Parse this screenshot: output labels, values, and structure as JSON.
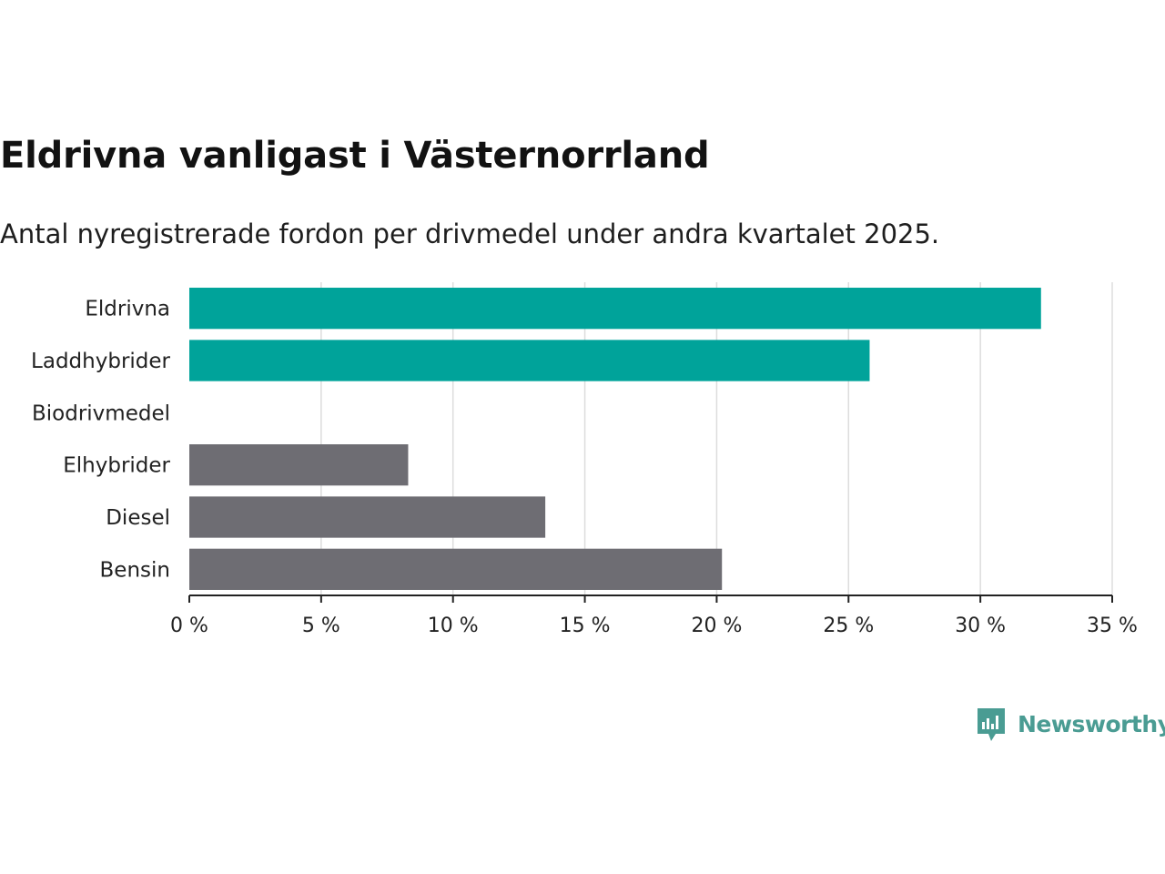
{
  "title": "Eldrivna vanligast i Västernorrland",
  "subtitle": "Antal nyregistrerade fordon per drivmedel under andra kvartalet 2025.",
  "brand": {
    "name": "Newsworthy",
    "icon": "newsworthy-logo-icon"
  },
  "colors": {
    "highlight": "#00a39a",
    "default": "#6e6d73",
    "grid": "#dddddd",
    "axis": "#222222",
    "brand": "#4a9c93"
  },
  "chart_data": {
    "type": "bar",
    "orientation": "horizontal",
    "categories": [
      "Eldrivna",
      "Laddhybrider",
      "Biodrivmedel",
      "Elhybrider",
      "Diesel",
      "Bensin"
    ],
    "values": [
      32.3,
      25.8,
      0,
      8.3,
      13.5,
      20.2
    ],
    "highlighted": [
      true,
      true,
      false,
      false,
      false,
      false
    ],
    "xlim": [
      0,
      35
    ],
    "xticks": [
      0,
      5,
      10,
      15,
      20,
      25,
      30,
      35
    ],
    "xtick_labels": [
      "0 %",
      "5 %",
      "10 %",
      "15 %",
      "20 %",
      "25 %",
      "30 %",
      "35 %"
    ],
    "grid": true,
    "legend": "none"
  }
}
